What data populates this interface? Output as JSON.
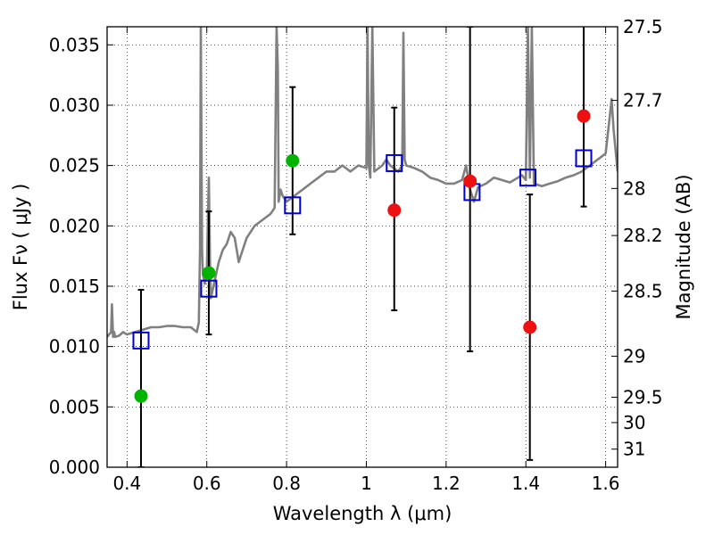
{
  "chart_data": {
    "type": "scatter",
    "title": "",
    "xlabel": "Wavelength  λ (μm)",
    "ylabel": "Flux  Fν  ( μJy )",
    "y2label": "Magnitude (AB)",
    "xlim": [
      0.35,
      1.63
    ],
    "ylim": [
      0.0,
      0.0365
    ],
    "grid": true,
    "xticks": [
      "0.4",
      "0.6",
      "0.8",
      "1",
      "1.2",
      "1.4",
      "1.6"
    ],
    "yticks": [
      "0.000",
      "0.005",
      "0.010",
      "0.015",
      "0.020",
      "0.025",
      "0.030",
      "0.035"
    ],
    "mag_ticks": [
      {
        "label": "27.5",
        "flux": 0.0365
      },
      {
        "label": "27.7",
        "flux": 0.0304
      },
      {
        "label": "28",
        "flux": 0.0231
      },
      {
        "label": "28.2",
        "flux": 0.0192
      },
      {
        "label": "28.5",
        "flux": 0.0146
      },
      {
        "label": "29",
        "flux": 0.0092
      },
      {
        "label": "29.5",
        "flux": 0.0058
      },
      {
        "label": "30",
        "flux": 0.0037
      },
      {
        "label": "31",
        "flux": 0.0015
      }
    ],
    "colors": {
      "template": "#808080",
      "model": "#0000cc",
      "green": "#00b400",
      "red": "#ee1111",
      "errorbar": "#000000"
    },
    "template_spectrum": {
      "x": [
        0.35,
        0.36,
        0.362,
        0.365,
        0.368,
        0.37,
        0.38,
        0.39,
        0.4,
        0.41,
        0.42,
        0.43,
        0.44,
        0.45,
        0.46,
        0.47,
        0.48,
        0.5,
        0.52,
        0.54,
        0.56,
        0.575,
        0.58,
        0.583,
        0.585,
        0.588,
        0.59,
        0.595,
        0.6,
        0.605,
        0.608,
        0.61,
        0.62,
        0.63,
        0.64,
        0.65,
        0.66,
        0.67,
        0.68,
        0.69,
        0.7,
        0.72,
        0.74,
        0.76,
        0.77,
        0.775,
        0.778,
        0.78,
        0.785,
        0.79,
        0.8,
        0.82,
        0.84,
        0.86,
        0.88,
        0.9,
        0.92,
        0.94,
        0.96,
        0.98,
        1.0,
        1.003,
        1.006,
        1.01,
        1.015,
        1.02,
        1.04,
        1.05,
        1.06,
        1.08,
        1.09,
        1.093,
        1.096,
        1.1,
        1.12,
        1.14,
        1.16,
        1.18,
        1.2,
        1.22,
        1.24,
        1.25,
        1.26,
        1.27,
        1.28,
        1.3,
        1.32,
        1.34,
        1.36,
        1.38,
        1.39,
        1.4,
        1.405,
        1.41,
        1.415,
        1.42,
        1.44,
        1.46,
        1.48,
        1.5,
        1.52,
        1.54,
        1.56,
        1.58,
        1.6,
        1.61,
        1.615,
        1.62,
        1.63
      ],
      "y": [
        0.0108,
        0.0112,
        0.0135,
        0.0108,
        0.0112,
        0.0108,
        0.0109,
        0.0112,
        0.011,
        0.0111,
        0.0112,
        0.0113,
        0.0114,
        0.0115,
        0.0116,
        0.0116,
        0.0116,
        0.0117,
        0.0117,
        0.0116,
        0.0116,
        0.0112,
        0.012,
        0.018,
        0.0365,
        0.018,
        0.016,
        0.0152,
        0.016,
        0.024,
        0.017,
        0.014,
        0.0155,
        0.017,
        0.018,
        0.0185,
        0.0195,
        0.019,
        0.017,
        0.018,
        0.019,
        0.02,
        0.0205,
        0.021,
        0.0215,
        0.0365,
        0.033,
        0.022,
        0.023,
        0.0225,
        0.022,
        0.0225,
        0.023,
        0.0235,
        0.024,
        0.0245,
        0.0245,
        0.025,
        0.0245,
        0.025,
        0.0248,
        0.0365,
        0.025,
        0.024,
        0.0365,
        0.0245,
        0.025,
        0.0255,
        0.025,
        0.0245,
        0.025,
        0.036,
        0.0255,
        0.025,
        0.0248,
        0.0245,
        0.024,
        0.0238,
        0.0235,
        0.0235,
        0.0238,
        0.025,
        0.023,
        0.022,
        0.0232,
        0.0235,
        0.024,
        0.0238,
        0.0236,
        0.024,
        0.0242,
        0.0238,
        0.0365,
        0.024,
        0.0365,
        0.0235,
        0.0233,
        0.0235,
        0.0237,
        0.024,
        0.0242,
        0.0245,
        0.025,
        0.0255,
        0.026,
        0.029,
        0.0305,
        0.028,
        0.0245
      ]
    },
    "series": [
      {
        "marker": "open-square",
        "color": "#0000cc",
        "x": [
          0.435,
          0.605,
          0.815,
          1.07,
          1.265,
          1.405,
          1.545
        ],
        "y": [
          0.0105,
          0.0148,
          0.0217,
          0.0252,
          0.0228,
          0.024,
          0.0256
        ]
      },
      {
        "marker": "filled-circle",
        "color": "#00b400",
        "x": [
          0.435,
          0.605,
          0.815
        ],
        "y": [
          0.0059,
          0.0161,
          0.0254
        ],
        "yerr_low": [
          0.0059,
          0.0051,
          0.0061
        ],
        "yerr_high": [
          0.0088,
          0.0051,
          0.0061
        ]
      },
      {
        "marker": "filled-circle",
        "color": "#ee1111",
        "x": [
          1.07,
          1.26,
          1.41,
          1.545
        ],
        "y": [
          0.0213,
          0.0237,
          0.0116,
          0.0291
        ],
        "yerr_low": [
          0.0083,
          0.0141,
          0.011,
          0.0075
        ],
        "yerr_high": [
          0.0085,
          0.0128,
          0.011,
          0.0074
        ]
      }
    ]
  }
}
